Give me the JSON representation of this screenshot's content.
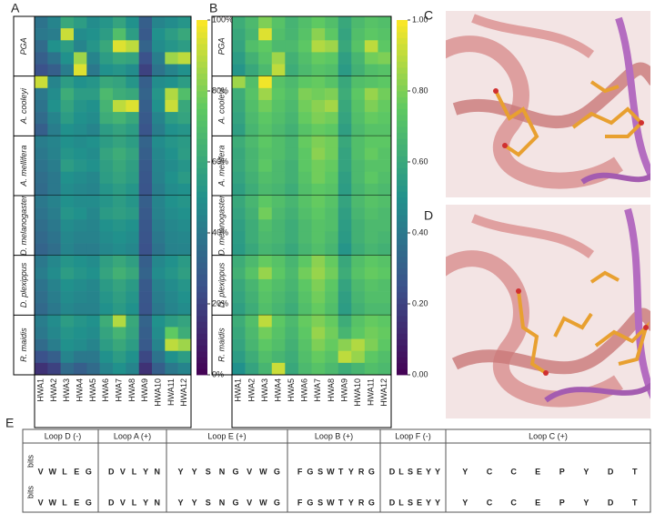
{
  "chart_data": [
    {
      "type": "heatmap",
      "panel": "A",
      "colormap": "viridis",
      "columns": [
        "HWA1",
        "HWA2",
        "HWA3",
        "HWA4",
        "HWA5",
        "HWA6",
        "HWA7",
        "HWA8",
        "HWA9",
        "HWA10",
        "HWA11",
        "HWA12"
      ],
      "clim": [
        0,
        100
      ],
      "cticks": [
        {
          "value": 0,
          "label": "0%"
        },
        {
          "value": 20,
          "label": "20%"
        },
        {
          "value": 40,
          "label": "40%"
        },
        {
          "value": 60,
          "label": "60%"
        },
        {
          "value": 80,
          "label": "80%"
        },
        {
          "value": 100,
          "label": "100%"
        }
      ],
      "groups": [
        {
          "name": "PGA",
          "values": [
            [
              38,
              45,
              60,
              55,
              48,
              52,
              58,
              50,
              30,
              45,
              48,
              52
            ],
            [
              40,
              42,
              92,
              48,
              50,
              55,
              70,
              55,
              28,
              50,
              55,
              60
            ],
            [
              35,
              50,
              55,
              45,
              52,
              60,
              95,
              90,
              32,
              48,
              52,
              55
            ],
            [
              30,
              38,
              50,
              85,
              45,
              55,
              60,
              58,
              25,
              42,
              85,
              90
            ],
            [
              25,
              30,
              42,
              95,
              40,
              50,
              52,
              48,
              20,
              38,
              45,
              50
            ]
          ]
        },
        {
          "name": "A. cooleyi",
          "values": [
            [
              92,
              45,
              55,
              50,
              52,
              60,
              58,
              52,
              30,
              48,
              50,
              55
            ],
            [
              40,
              48,
              62,
              55,
              55,
              68,
              62,
              60,
              32,
              52,
              88,
              70
            ],
            [
              38,
              50,
              58,
              52,
              50,
              65,
              90,
              95,
              30,
              50,
              92,
              60
            ],
            [
              35,
              45,
              55,
              50,
              48,
              62,
              65,
              60,
              28,
              45,
              55,
              58
            ],
            [
              30,
              42,
              50,
              48,
              45,
              55,
              58,
              55,
              26,
              42,
              50,
              52
            ]
          ]
        },
        {
          "name": "A. mellifera",
          "values": [
            [
              42,
              45,
              50,
              48,
              50,
              55,
              58,
              55,
              32,
              48,
              52,
              54
            ],
            [
              40,
              44,
              52,
              50,
              48,
              58,
              62,
              58,
              30,
              46,
              50,
              55
            ],
            [
              38,
              42,
              55,
              52,
              50,
              56,
              60,
              56,
              28,
              45,
              48,
              52
            ],
            [
              36,
              40,
              50,
              48,
              46,
              55,
              58,
              55,
              27,
              44,
              50,
              54
            ],
            [
              35,
              40,
              48,
              46,
              45,
              52,
              55,
              52,
              26,
              42,
              48,
              50
            ]
          ]
        },
        {
          "name": "D. melanogaster",
          "values": [
            [
              40,
              44,
              50,
              48,
              48,
              52,
              55,
              52,
              30,
              45,
              50,
              52
            ],
            [
              38,
              42,
              52,
              50,
              46,
              54,
              56,
              54,
              28,
              44,
              48,
              50
            ],
            [
              36,
              40,
              48,
              46,
              45,
              50,
              52,
              50,
              27,
              42,
              46,
              48
            ],
            [
              34,
              38,
              46,
              44,
              44,
              48,
              50,
              48,
              26,
              40,
              45,
              46
            ],
            [
              32,
              36,
              45,
              42,
              42,
              46,
              48,
              46,
              25,
              38,
              44,
              45
            ]
          ]
        },
        {
          "name": "D. plexippus",
          "values": [
            [
              40,
              46,
              52,
              50,
              48,
              56,
              60,
              56,
              30,
              46,
              50,
              54
            ],
            [
              42,
              48,
              55,
              52,
              50,
              58,
              64,
              60,
              32,
              48,
              52,
              56
            ],
            [
              38,
              44,
              50,
              48,
              46,
              54,
              58,
              54,
              28,
              44,
              48,
              52
            ],
            [
              36,
              42,
              48,
              46,
              45,
              52,
              56,
              52,
              27,
              42,
              46,
              50
            ],
            [
              34,
              40,
              46,
              44,
              44,
              50,
              54,
              50,
              26,
              40,
              45,
              48
            ]
          ]
        },
        {
          "name": "R. maidis",
          "values": [
            [
              42,
              48,
              55,
              52,
              50,
              62,
              88,
              60,
              32,
              50,
              55,
              58
            ],
            [
              40,
              46,
              52,
              50,
              48,
              58,
              65,
              58,
              30,
              48,
              75,
              62
            ],
            [
              35,
              42,
              50,
              48,
              45,
              55,
              60,
              55,
              28,
              45,
              90,
              85
            ],
            [
              25,
              30,
              45,
              40,
              40,
              50,
              55,
              50,
              22,
              38,
              50,
              55
            ],
            [
              15,
              20,
              35,
              30,
              35,
              45,
              50,
              45,
              15,
              30,
              40,
              45
            ]
          ]
        }
      ]
    },
    {
      "type": "heatmap",
      "panel": "B",
      "colormap": "viridis",
      "columns": [
        "HWA1",
        "HWA2",
        "HWA3",
        "HWA4",
        "HWA5",
        "HWA6",
        "HWA7",
        "HWA8",
        "HWA9",
        "HWA10",
        "HWA11",
        "HWA12"
      ],
      "clim": [
        0,
        1
      ],
      "cticks": [
        {
          "value": 0,
          "label": "0.00"
        },
        {
          "value": 0.2,
          "label": "0.20"
        },
        {
          "value": 0.4,
          "label": "0.40"
        },
        {
          "value": 0.6,
          "label": "0.60"
        },
        {
          "value": 0.8,
          "label": "0.80"
        },
        {
          "value": 1,
          "label": "1.00"
        }
      ],
      "groups": [
        {
          "name": "PGA",
          "values": [
            [
              0.62,
              0.68,
              0.8,
              0.72,
              0.65,
              0.7,
              0.75,
              0.7,
              0.6,
              0.68,
              0.72,
              0.7
            ],
            [
              0.6,
              0.66,
              0.95,
              0.7,
              0.66,
              0.72,
              0.82,
              0.74,
              0.58,
              0.7,
              0.74,
              0.72
            ],
            [
              0.58,
              0.7,
              0.75,
              0.68,
              0.68,
              0.74,
              0.88,
              0.85,
              0.6,
              0.72,
              0.9,
              0.74
            ],
            [
              0.55,
              0.64,
              0.72,
              0.85,
              0.64,
              0.7,
              0.76,
              0.74,
              0.56,
              0.66,
              0.78,
              0.8
            ],
            [
              0.52,
              0.6,
              0.68,
              0.9,
              0.62,
              0.68,
              0.72,
              0.7,
              0.54,
              0.64,
              0.7,
              0.72
            ]
          ]
        },
        {
          "name": "A. cooleyi",
          "values": [
            [
              0.85,
              0.7,
              0.98,
              0.72,
              0.68,
              0.74,
              0.76,
              0.72,
              0.6,
              0.7,
              0.72,
              0.74
            ],
            [
              0.62,
              0.72,
              0.85,
              0.74,
              0.7,
              0.8,
              0.78,
              0.8,
              0.62,
              0.74,
              0.84,
              0.78
            ],
            [
              0.6,
              0.7,
              0.78,
              0.72,
              0.68,
              0.78,
              0.82,
              0.86,
              0.6,
              0.72,
              0.8,
              0.76
            ],
            [
              0.58,
              0.68,
              0.74,
              0.7,
              0.66,
              0.76,
              0.8,
              0.78,
              0.58,
              0.7,
              0.76,
              0.74
            ],
            [
              0.56,
              0.66,
              0.72,
              0.68,
              0.64,
              0.72,
              0.76,
              0.74,
              0.56,
              0.68,
              0.72,
              0.72
            ]
          ]
        },
        {
          "name": "A. mellifera",
          "values": [
            [
              0.62,
              0.68,
              0.74,
              0.7,
              0.66,
              0.76,
              0.8,
              0.78,
              0.6,
              0.7,
              0.74,
              0.74
            ],
            [
              0.6,
              0.66,
              0.72,
              0.7,
              0.66,
              0.74,
              0.82,
              0.78,
              0.58,
              0.7,
              0.76,
              0.72
            ],
            [
              0.6,
              0.66,
              0.74,
              0.68,
              0.64,
              0.74,
              0.78,
              0.76,
              0.58,
              0.68,
              0.72,
              0.72
            ],
            [
              0.58,
              0.64,
              0.7,
              0.68,
              0.64,
              0.72,
              0.78,
              0.74,
              0.56,
              0.68,
              0.74,
              0.7
            ],
            [
              0.56,
              0.62,
              0.68,
              0.66,
              0.62,
              0.7,
              0.74,
              0.72,
              0.55,
              0.66,
              0.7,
              0.68
            ]
          ]
        },
        {
          "name": "D. melanogaster",
          "values": [
            [
              0.6,
              0.66,
              0.74,
              0.7,
              0.66,
              0.72,
              0.76,
              0.72,
              0.58,
              0.68,
              0.72,
              0.7
            ],
            [
              0.58,
              0.64,
              0.78,
              0.68,
              0.64,
              0.7,
              0.74,
              0.7,
              0.56,
              0.66,
              0.7,
              0.68
            ],
            [
              0.56,
              0.62,
              0.7,
              0.66,
              0.62,
              0.68,
              0.72,
              0.7,
              0.55,
              0.64,
              0.68,
              0.68
            ],
            [
              0.55,
              0.62,
              0.68,
              0.66,
              0.62,
              0.68,
              0.72,
              0.68,
              0.54,
              0.64,
              0.68,
              0.66
            ],
            [
              0.54,
              0.6,
              0.66,
              0.64,
              0.6,
              0.66,
              0.7,
              0.66,
              0.52,
              0.62,
              0.66,
              0.64
            ]
          ]
        },
        {
          "name": "D. plexippus",
          "values": [
            [
              0.62,
              0.68,
              0.76,
              0.72,
              0.66,
              0.74,
              0.82,
              0.76,
              0.6,
              0.7,
              0.74,
              0.72
            ],
            [
              0.64,
              0.72,
              0.84,
              0.74,
              0.68,
              0.78,
              0.84,
              0.78,
              0.62,
              0.72,
              0.76,
              0.74
            ],
            [
              0.6,
              0.66,
              0.74,
              0.7,
              0.66,
              0.74,
              0.8,
              0.74,
              0.58,
              0.68,
              0.72,
              0.7
            ],
            [
              0.58,
              0.64,
              0.72,
              0.68,
              0.64,
              0.72,
              0.78,
              0.72,
              0.56,
              0.66,
              0.7,
              0.7
            ],
            [
              0.56,
              0.62,
              0.7,
              0.66,
              0.62,
              0.7,
              0.76,
              0.7,
              0.55,
              0.64,
              0.68,
              0.68
            ]
          ]
        },
        {
          "name": "R. maidis",
          "values": [
            [
              0.62,
              0.7,
              0.9,
              0.74,
              0.68,
              0.76,
              0.8,
              0.76,
              0.62,
              0.72,
              0.76,
              0.74
            ],
            [
              0.6,
              0.68,
              0.78,
              0.72,
              0.66,
              0.74,
              0.84,
              0.78,
              0.66,
              0.74,
              0.78,
              0.76
            ],
            [
              0.58,
              0.66,
              0.74,
              0.7,
              0.64,
              0.72,
              0.8,
              0.76,
              0.82,
              0.88,
              0.8,
              0.74
            ],
            [
              0.55,
              0.62,
              0.7,
              0.66,
              0.62,
              0.7,
              0.76,
              0.72,
              0.9,
              0.84,
              0.74,
              0.7
            ],
            [
              0.5,
              0.58,
              0.66,
              0.92,
              0.6,
              0.68,
              0.72,
              0.68,
              0.62,
              0.66,
              0.7,
              0.68
            ]
          ]
        }
      ]
    }
  ],
  "structure_panels": [
    {
      "label": "C"
    },
    {
      "label": "D"
    }
  ],
  "logo": {
    "label": "E",
    "axis_label": "bits",
    "loops": [
      {
        "name": "Loop D (-)",
        "letters": [
          "V",
          "W",
          "L",
          "E",
          "G"
        ]
      },
      {
        "name": "Loop A (+)",
        "letters": [
          "D",
          "V",
          "L",
          "Y",
          "N"
        ]
      },
      {
        "name": "Loop E (+)",
        "letters": [
          "Y",
          "Y",
          "S",
          "N",
          "G",
          "V",
          "W",
          "G"
        ]
      },
      {
        "name": "Loop B (+)",
        "letters": [
          "F",
          "G",
          "S",
          "W",
          "T",
          "Y",
          "R",
          "G"
        ]
      },
      {
        "name": "Loop F (-)",
        "letters": [
          "D",
          "L",
          "S",
          "E",
          "Y",
          "Y"
        ]
      },
      {
        "name": "Loop C (+)",
        "letters": [
          "Y",
          "C",
          "C",
          "E",
          "P",
          "Y",
          "D",
          "T"
        ]
      }
    ]
  }
}
